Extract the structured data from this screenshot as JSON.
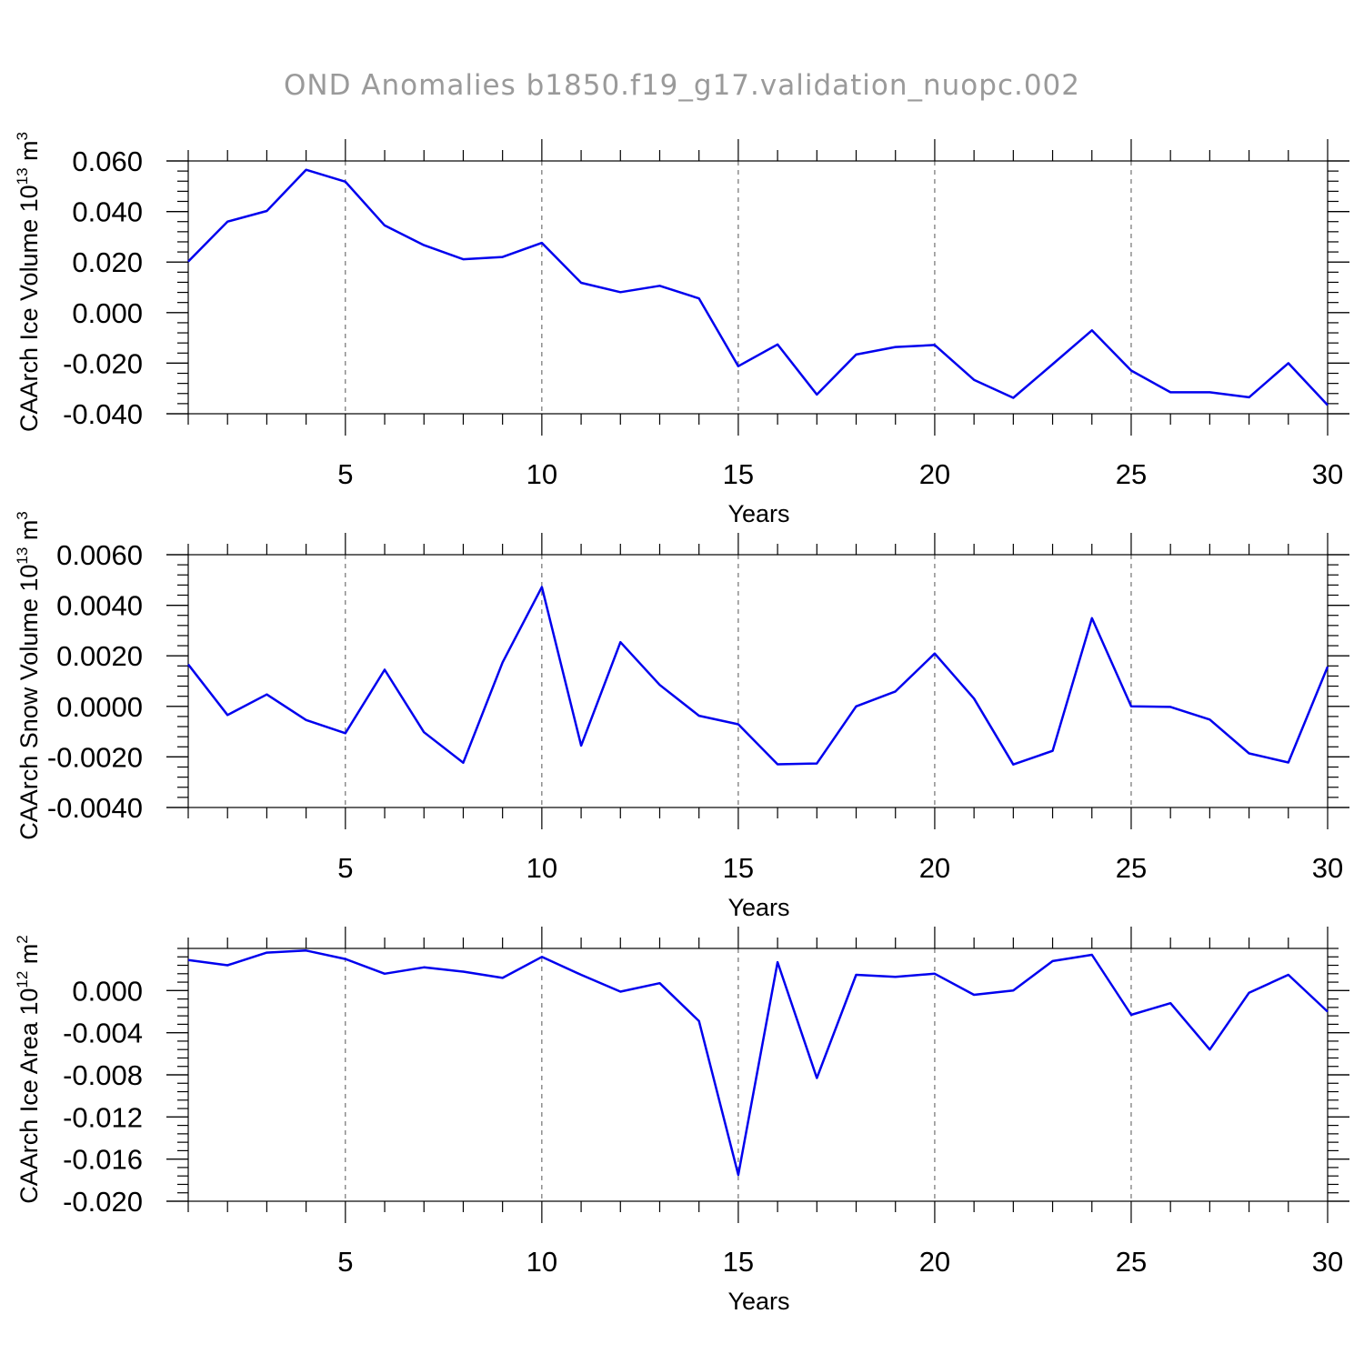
{
  "title": "OND Anomalies b1850.f19_g17.validation_nuopc.002",
  "chart_data": [
    {
      "type": "line",
      "xlabel": "Years",
      "ylabel": "CAArch Ice Volume 10",
      "ylabel_exp": "13",
      "ylabel_unit": " m",
      "ylabel_unit_exp": "3",
      "xlim": [
        1,
        30
      ],
      "ylim": [
        -0.04,
        0.06
      ],
      "yticks": [
        -0.04,
        -0.02,
        0.0,
        0.02,
        0.04,
        0.06
      ],
      "yticklabels": [
        "-0.040",
        "-0.020",
        "0.000",
        "0.020",
        "0.040",
        "0.060"
      ],
      "yminor": 0.004,
      "xticks": [
        5,
        10,
        15,
        20,
        25,
        30
      ],
      "xticklabels": [
        "5",
        "10",
        "15",
        "20",
        "25",
        "30"
      ],
      "grid_x": [
        5,
        10,
        15,
        20,
        25
      ],
      "color": "#0000ee",
      "series": [
        {
          "name": "CAArch Ice Volume",
          "x": [
            1,
            2,
            3,
            4,
            5,
            6,
            7,
            8,
            9,
            10,
            11,
            12,
            13,
            14,
            15,
            16,
            17,
            18,
            19,
            20,
            21,
            22,
            23,
            24,
            25,
            26,
            27,
            28,
            29,
            30
          ],
          "values": [
            0.0202,
            0.036,
            0.0402,
            0.0565,
            0.0518,
            0.0345,
            0.0267,
            0.0211,
            0.022,
            0.0276,
            0.0118,
            0.0081,
            0.0106,
            0.0056,
            -0.0212,
            -0.0126,
            -0.0324,
            -0.0166,
            -0.0136,
            -0.0128,
            -0.0266,
            -0.0337,
            -0.0204,
            -0.007,
            -0.0229,
            -0.0315,
            -0.0315,
            -0.0335,
            -0.02,
            -0.0366
          ]
        }
      ]
    },
    {
      "type": "line",
      "xlabel": "Years",
      "ylabel": "CAArch Snow Volume 10",
      "ylabel_exp": "13",
      "ylabel_unit": " m",
      "ylabel_unit_exp": "3",
      "xlim": [
        1,
        30
      ],
      "ylim": [
        -0.004,
        0.006
      ],
      "yticks": [
        -0.004,
        -0.002,
        0.0,
        0.002,
        0.004,
        0.006
      ],
      "yticklabels": [
        "-0.0040",
        "-0.0020",
        "0.0000",
        "0.0020",
        "0.0040",
        "0.0060"
      ],
      "yminor": 0.0004,
      "xticks": [
        5,
        10,
        15,
        20,
        25,
        30
      ],
      "xticklabels": [
        "5",
        "10",
        "15",
        "20",
        "25",
        "30"
      ],
      "grid_x": [
        5,
        10,
        15,
        20,
        25
      ],
      "color": "#0000ee",
      "series": [
        {
          "name": "CAArch Snow Volume",
          "x": [
            1,
            2,
            3,
            4,
            5,
            6,
            7,
            8,
            9,
            10,
            11,
            12,
            13,
            14,
            15,
            16,
            17,
            18,
            19,
            20,
            21,
            22,
            23,
            24,
            25,
            26,
            27,
            28,
            29,
            30
          ],
          "values": [
            0.00166,
            -0.00034,
            0.00047,
            -0.00054,
            -0.00106,
            0.00145,
            -0.00102,
            -0.00223,
            0.00174,
            0.00472,
            -0.00155,
            0.00254,
            0.00085,
            -0.00037,
            -0.00071,
            -0.00229,
            -0.00226,
            0.0,
            0.00059,
            0.00209,
            0.00031,
            -0.0023,
            -0.00176,
            0.00349,
            0.0,
            -2e-05,
            -0.00052,
            -0.00186,
            -0.00222,
            0.00157
          ]
        }
      ]
    },
    {
      "type": "line",
      "xlabel": "Years",
      "ylabel": "CAArch Ice Area 10",
      "ylabel_exp": "12",
      "ylabel_unit": " m",
      "ylabel_unit_exp": "2",
      "xlim": [
        1,
        30
      ],
      "ylim": [
        -0.02,
        0.004
      ],
      "yticks": [
        -0.02,
        -0.016,
        -0.012,
        -0.008,
        -0.004,
        0.0
      ],
      "yticklabels": [
        "-0.020",
        "-0.016",
        "-0.012",
        "-0.008",
        "-0.004",
        "0.000"
      ],
      "yminor": 0.0008,
      "xticks": [
        5,
        10,
        15,
        20,
        25,
        30
      ],
      "xticklabels": [
        "5",
        "10",
        "15",
        "20",
        "25",
        "30"
      ],
      "grid_x": [
        5,
        10,
        15,
        20,
        25
      ],
      "color": "#0000ee",
      "series": [
        {
          "name": "CAArch Ice Area",
          "x": [
            1,
            2,
            3,
            4,
            5,
            6,
            7,
            8,
            9,
            10,
            11,
            12,
            13,
            14,
            15,
            16,
            17,
            18,
            19,
            20,
            21,
            22,
            23,
            24,
            25,
            26,
            27,
            28,
            29,
            30
          ],
          "values": [
            0.0029,
            0.0024,
            0.0036,
            0.0038,
            0.003,
            0.0016,
            0.0022,
            0.0018,
            0.0012,
            0.0032,
            0.0015,
            -0.0001,
            0.0007,
            -0.0029,
            -0.0175,
            0.0027,
            -0.0083,
            0.0015,
            0.0013,
            0.0016,
            -0.0004,
            0.0,
            0.0028,
            0.0034,
            -0.0023,
            -0.0012,
            -0.0056,
            -0.0002,
            0.0015,
            -0.002
          ]
        }
      ]
    }
  ]
}
